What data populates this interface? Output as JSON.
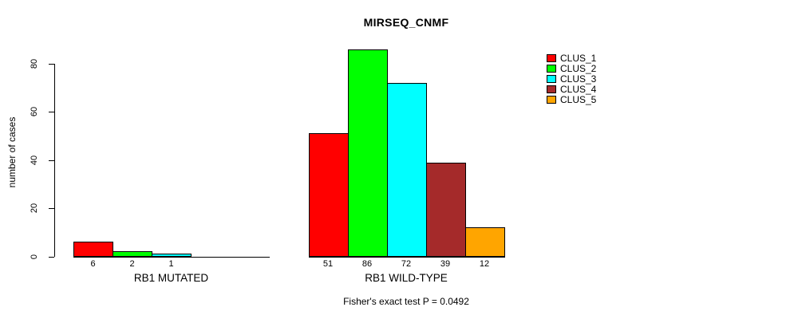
{
  "chart_data": {
    "type": "bar",
    "title": "MIRSEQ_CNMF",
    "ylabel": "number of cases",
    "xlabel": "",
    "categories": [
      "RB1 MUTATED",
      "RB1 WILD-TYPE"
    ],
    "series": [
      {
        "name": "CLUS_1",
        "color": "#FF0000",
        "values": [
          6,
          51
        ]
      },
      {
        "name": "CLUS_2",
        "color": "#00FF00",
        "values": [
          2,
          86
        ]
      },
      {
        "name": "CLUS_3",
        "color": "#00FFFF",
        "values": [
          1,
          72
        ]
      },
      {
        "name": "CLUS_4",
        "color": "#A52A2A",
        "values": [
          0,
          39
        ]
      },
      {
        "name": "CLUS_5",
        "color": "#FFA500",
        "values": [
          0,
          12
        ]
      }
    ],
    "yticks": [
      0,
      20,
      40,
      60,
      80
    ],
    "ylim": [
      0,
      80
    ],
    "grid": false,
    "bar_value_labels_shown": true,
    "zero_bars_drawn_flat": true,
    "legend_position": "right-outside",
    "annotation": "Fisher's exact test P = 0.0492",
    "background_color": "#FFFFFF",
    "axis_color": "#000000"
  }
}
